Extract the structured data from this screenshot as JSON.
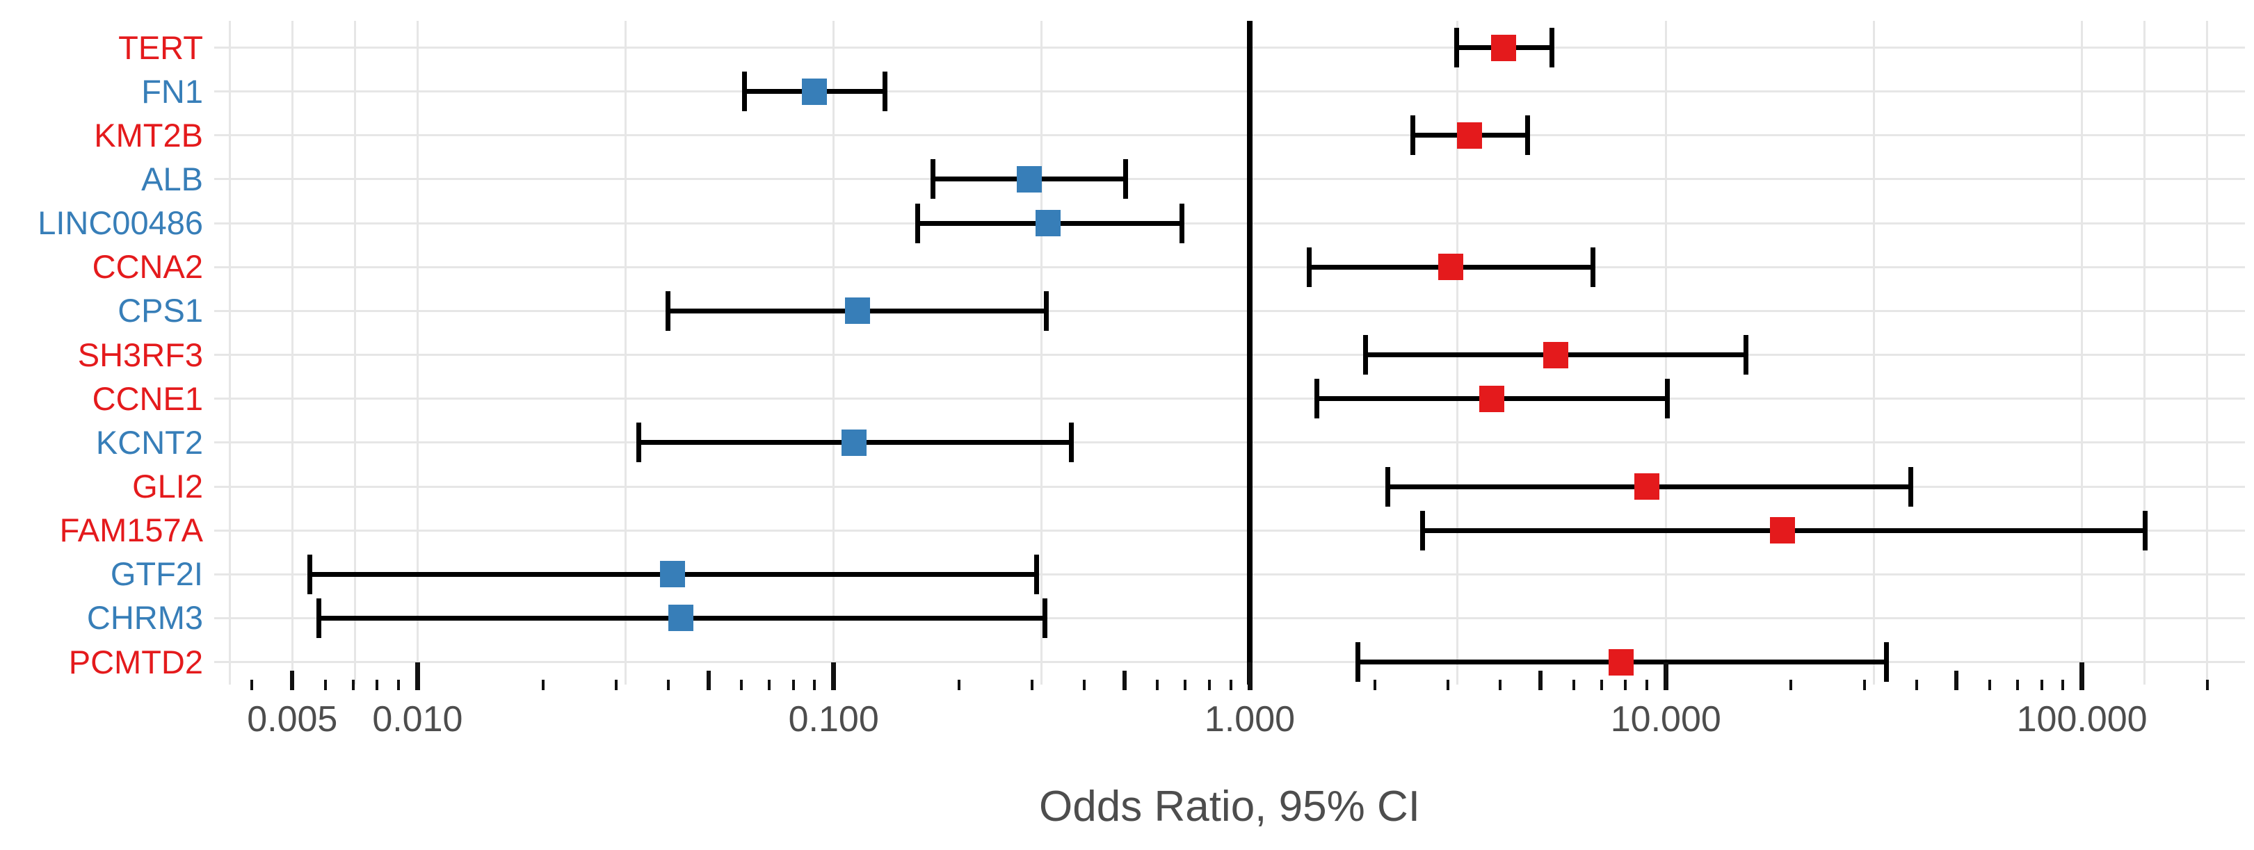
{
  "chart_data": {
    "type": "forest",
    "xlabel": "Odds Ratio, 95% CI",
    "x_scale": "log10",
    "x_axis_labels": [
      {
        "value": 0.005,
        "label": "0.005"
      },
      {
        "value": 0.01,
        "label": "0.010"
      },
      {
        "value": 0.1,
        "label": "0.100"
      },
      {
        "value": 1.0,
        "label": "1.000"
      },
      {
        "value": 10.0,
        "label": "10.000"
      },
      {
        "value": 100.0,
        "label": "100.000"
      }
    ],
    "reference_line": 1.0,
    "xlim": [
      0.0035,
      230
    ],
    "grid": "on",
    "gridlines_major": [
      0.005,
      0.01,
      0.1,
      1,
      10,
      100
    ],
    "gridlines_minor": [
      0.00354,
      0.00707,
      0.0316,
      0.316,
      3.16,
      31.6,
      141.4,
      200
    ],
    "ticks_decade": [
      0.01,
      0.1,
      1,
      10,
      100
    ],
    "ticks_medium": [
      0.005,
      0.05,
      0.5,
      5,
      50
    ],
    "ticks_minor": [
      0.004,
      0.006,
      0.007,
      0.008,
      0.009,
      0.02,
      0.03,
      0.04,
      0.06,
      0.07,
      0.08,
      0.09,
      0.2,
      0.3,
      0.4,
      0.6,
      0.7,
      0.8,
      0.9,
      2,
      3,
      4,
      6,
      7,
      8,
      9,
      20,
      30,
      40,
      60,
      70,
      80,
      90,
      200
    ],
    "colors": {
      "red": "#E41A1C",
      "blue": "#377EB8",
      "bar": "#000000",
      "grid": "#e6e6e6",
      "axis_text": "#4d4d4d"
    },
    "rows": [
      {
        "gene": "TERT",
        "color": "red",
        "or": 4.08,
        "low": 3.14,
        "high": 5.32
      },
      {
        "gene": "FN1",
        "color": "blue",
        "or": 0.09,
        "low": 0.061,
        "high": 0.133
      },
      {
        "gene": "KMT2B",
        "color": "red",
        "or": 3.38,
        "low": 2.47,
        "high": 4.65
      },
      {
        "gene": "ALB",
        "color": "blue",
        "or": 0.295,
        "low": 0.173,
        "high": 0.504
      },
      {
        "gene": "LINC00486",
        "color": "blue",
        "or": 0.327,
        "low": 0.159,
        "high": 0.688
      },
      {
        "gene": "CCNA2",
        "color": "red",
        "or": 3.04,
        "low": 1.39,
        "high": 6.67
      },
      {
        "gene": "CPS1",
        "color": "blue",
        "or": 0.114,
        "low": 0.04,
        "high": 0.325
      },
      {
        "gene": "SH3RF3",
        "color": "red",
        "or": 5.44,
        "low": 1.9,
        "high": 15.6
      },
      {
        "gene": "CCNE1",
        "color": "red",
        "or": 3.82,
        "low": 1.45,
        "high": 10.1
      },
      {
        "gene": "KCNT2",
        "color": "blue",
        "or": 0.112,
        "low": 0.034,
        "high": 0.373
      },
      {
        "gene": "GLI2",
        "color": "red",
        "or": 9.0,
        "low": 2.15,
        "high": 38.8
      },
      {
        "gene": "FAM157A",
        "color": "red",
        "or": 19.1,
        "low": 2.6,
        "high": 142
      },
      {
        "gene": "GTF2I",
        "color": "blue",
        "or": 0.041,
        "low": 0.0055,
        "high": 0.308
      },
      {
        "gene": "CHRM3",
        "color": "blue",
        "or": 0.043,
        "low": 0.0058,
        "high": 0.322
      },
      {
        "gene": "PCMTD2",
        "color": "red",
        "or": 7.8,
        "low": 1.82,
        "high": 33.9
      }
    ]
  }
}
